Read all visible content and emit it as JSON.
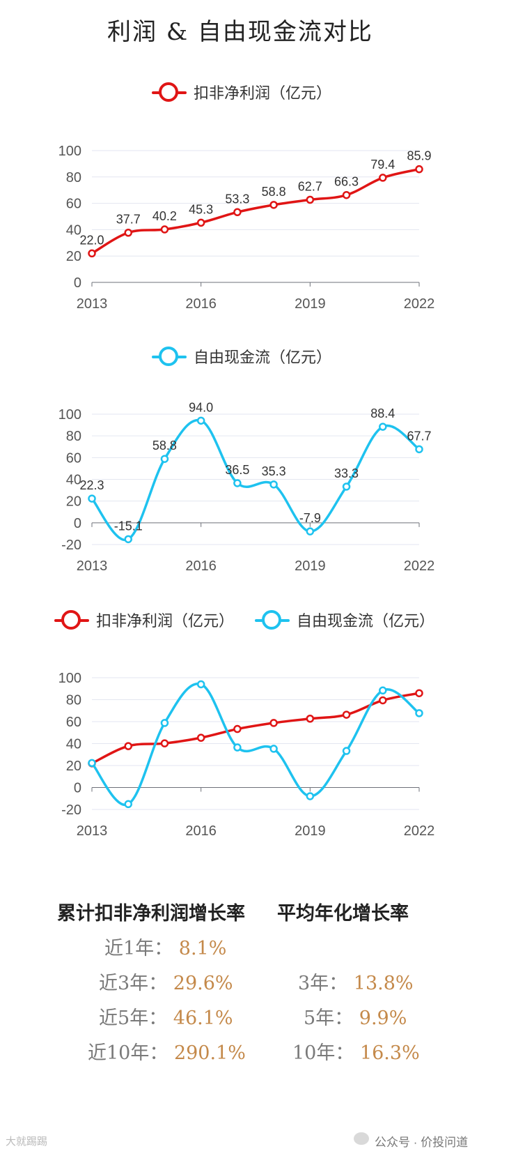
{
  "title": "利润 & 自由现金流对比",
  "legend": {
    "profit": "扣非净利润（亿元）",
    "fcf": "自由现金流（亿元）"
  },
  "colors": {
    "profit": "#e01515",
    "fcf": "#1ec2ef",
    "value_text": "#c4894a",
    "label_text": "#7a7a7a"
  },
  "chart_data": [
    {
      "type": "line",
      "title": "",
      "x": [
        "2013",
        "2014",
        "2015",
        "2016",
        "2017",
        "2018",
        "2019",
        "2020",
        "2021",
        "2022"
      ],
      "xticks": [
        "2013",
        "2016",
        "2019",
        "2022"
      ],
      "series": [
        {
          "name": "扣非净利润（亿元）",
          "values": [
            22.0,
            37.7,
            40.2,
            45.3,
            53.3,
            58.8,
            62.7,
            66.3,
            79.4,
            85.9
          ],
          "labels": [
            "22.0",
            "37.7",
            "40.2",
            "45.3",
            "53.3",
            "58.8",
            "62.7",
            "66.3",
            "79.4",
            "85.9"
          ]
        }
      ],
      "ylim": [
        0,
        100
      ],
      "yticks": [
        0,
        20,
        40,
        60,
        80,
        100
      ]
    },
    {
      "type": "line",
      "title": "",
      "x": [
        "2013",
        "2014",
        "2015",
        "2016",
        "2017",
        "2018",
        "2019",
        "2020",
        "2021",
        "2022"
      ],
      "xticks": [
        "2013",
        "2016",
        "2019",
        "2022"
      ],
      "series": [
        {
          "name": "自由现金流（亿元）",
          "values": [
            22.3,
            -15.1,
            58.8,
            94.0,
            36.5,
            35.3,
            -7.9,
            33.3,
            88.4,
            67.7
          ],
          "labels": [
            "22.3",
            "-15.1",
            "58.8",
            "94.0",
            "36.5",
            "35.3",
            "-7.9",
            "33.3",
            "88.4",
            "67.7"
          ]
        }
      ],
      "ylim": [
        -20,
        100
      ],
      "yticks": [
        -20,
        0,
        20,
        40,
        60,
        80,
        100
      ]
    },
    {
      "type": "line",
      "title": "",
      "x": [
        "2013",
        "2014",
        "2015",
        "2016",
        "2017",
        "2018",
        "2019",
        "2020",
        "2021",
        "2022"
      ],
      "xticks": [
        "2013",
        "2016",
        "2019",
        "2022"
      ],
      "series": [
        {
          "name": "扣非净利润（亿元）",
          "values": [
            22.0,
            37.7,
            40.2,
            45.3,
            53.3,
            58.8,
            62.7,
            66.3,
            79.4,
            85.9
          ]
        },
        {
          "name": "自由现金流（亿元）",
          "values": [
            22.3,
            -15.1,
            58.8,
            94.0,
            36.5,
            35.3,
            -7.9,
            33.3,
            88.4,
            67.7
          ]
        }
      ],
      "ylim": [
        -20,
        100
      ],
      "yticks": [
        -20,
        0,
        20,
        40,
        60,
        80,
        100
      ]
    }
  ],
  "stats": {
    "left_header": "累计扣非净利润增长率",
    "right_header": "平均年化增长率",
    "rows": [
      {
        "label": "近1年：",
        "value": "8.1%"
      },
      {
        "label": "近3年：",
        "value": "29.6%",
        "avg_label": "3年：",
        "avg_value": "13.8%"
      },
      {
        "label": "近5年：",
        "value": "46.1%",
        "avg_label": "5年：",
        "avg_value": "9.9%"
      },
      {
        "label": "近10年：",
        "value": "290.1%",
        "avg_label": "10年：",
        "avg_value": "16.3%"
      }
    ]
  },
  "footer": {
    "left": "大就踢踢",
    "right": "公众号 · 价投问道"
  }
}
